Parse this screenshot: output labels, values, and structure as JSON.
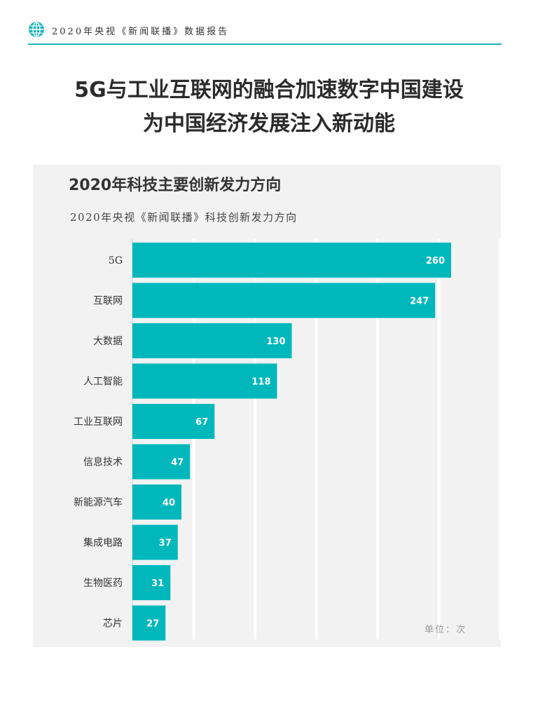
{
  "header": {
    "text": "2020年央视《新闻联播》数据报告"
  },
  "title": {
    "line1": "5G与工业互联网的融合加速数字中国建设",
    "line2": "为中国经济发展注入新动能"
  },
  "colors": {
    "accent": "#1ab4b8",
    "bar": "#00b8bc",
    "panel": "#f2f2f2"
  },
  "icons": {
    "header": "globe-icon"
  },
  "chart_data": {
    "type": "bar",
    "orientation": "horizontal",
    "title": "2020年科技主要创新发力方向",
    "subtitle": "2020年央视《新闻联播》科技创新发力方向",
    "unit": "单位：次",
    "categories": [
      "5G",
      "互联网",
      "大数据",
      "人工智能",
      "工业互联网",
      "信息技术",
      "新能源汽车",
      "集成电路",
      "生物医药",
      "芯片"
    ],
    "values": [
      260,
      247,
      130,
      118,
      67,
      47,
      40,
      37,
      31,
      27
    ],
    "xlim": [
      0,
      300
    ],
    "grid": true,
    "data_labels": true
  }
}
